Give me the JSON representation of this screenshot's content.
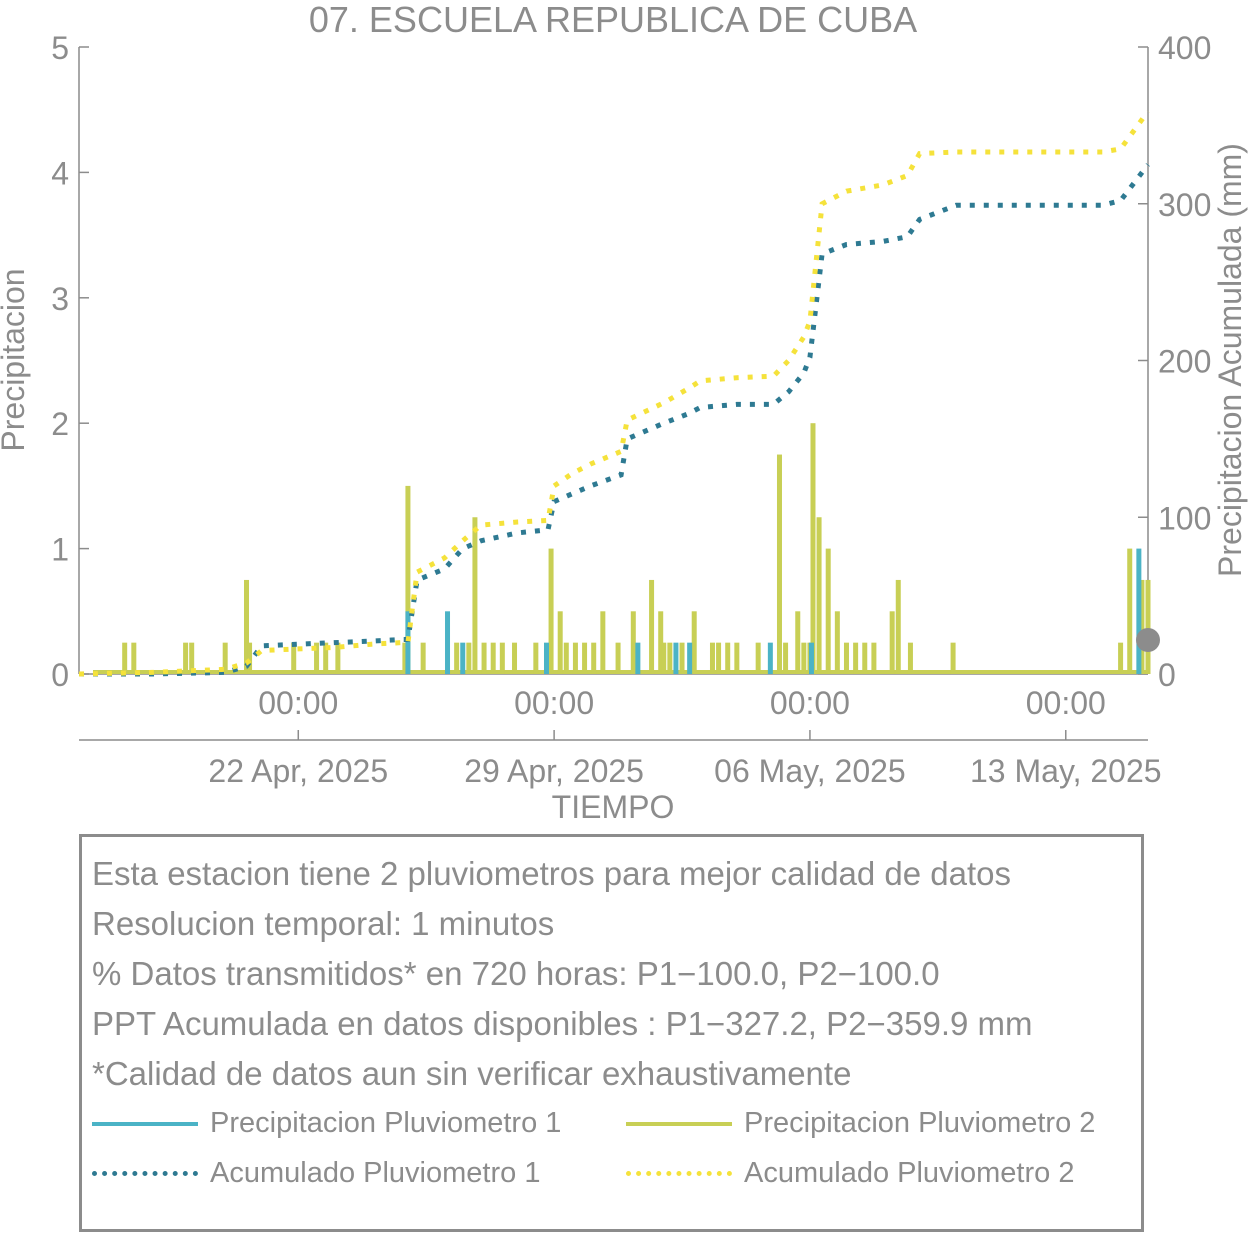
{
  "title": "07. ESCUELA REPUBLICA DE CUBA",
  "axes": {
    "y_left_label": "Precipitacion",
    "y_right_label": "Precipitacion Acumulada (mm)",
    "x_label": "TIEMPO",
    "y_left_ticks": [
      "0",
      "1",
      "2",
      "3",
      "4",
      "5"
    ],
    "y_right_ticks": [
      "0",
      "100",
      "200",
      "300",
      "400"
    ],
    "x_time_ticks": [
      "00:00",
      "00:00",
      "00:00",
      "00:00"
    ],
    "x_date_ticks": [
      "22 Apr, 2025",
      "29 Apr, 2025",
      "06 May, 2025",
      "13 May, 2025"
    ]
  },
  "info": {
    "lines": [
      "Esta estacion tiene 2 pluviometros para mejor calidad de datos",
      "Resolucion temporal: 1 minutos",
      "% Datos transmitidos* en 720 horas: P1−100.0, P2−100.0",
      "PPT Acumulada en datos disponibles : P1−327.2, P2−359.9 mm",
      "*Calidad de datos aun sin verificar exhaustivamente"
    ]
  },
  "legend": [
    {
      "label": "Precipitacion Pluviometro 1",
      "color": "#4bb3c6",
      "style": "solid"
    },
    {
      "label": "Precipitacion Pluviometro 2",
      "color": "#c8cf55",
      "style": "solid"
    },
    {
      "label": "Acumulado Pluviometro 1",
      "color": "#2e7a92",
      "style": "dotted"
    },
    {
      "label": "Acumulado Pluviometro 2",
      "color": "#f5e23b",
      "style": "dotted"
    }
  ],
  "chart_data": {
    "type": "bar",
    "title": "07. ESCUELA REPUBLICA DE CUBA",
    "xlabel": "TIEMPO",
    "ylabel": "Precipitacion",
    "y2label": "Precipitacion Acumulada (mm)",
    "ylim": [
      0,
      5
    ],
    "y2lim": [
      0,
      400
    ],
    "xlim": [
      "2025-04-16T00:00",
      "2025-05-15T06:00"
    ],
    "grid": false,
    "series": [
      {
        "name": "Precipitacion Pluviometro 1",
        "type": "bar",
        "axis": "left",
        "color": "#4bb3c6",
        "x": [
          "2025-04-25T00:00",
          "2025-04-26T02:00",
          "2025-04-26T12:00",
          "2025-04-28T19:00",
          "2025-05-01T07:00",
          "2025-05-02T08:00",
          "2025-05-02T17:00",
          "2025-05-04T22:00",
          "2025-05-06T01:00",
          "2025-05-15T00:00"
        ],
        "values": [
          0.5,
          0.5,
          0.25,
          0.25,
          0.25,
          0.25,
          0.25,
          0.25,
          0.25,
          1.0
        ]
      },
      {
        "name": "Precipitacion Pluviometro 2",
        "type": "bar",
        "axis": "left",
        "color": "#c8cf55",
        "x": [
          "2025-04-17T06:00",
          "2025-04-17T12:00",
          "2025-04-18T22:00",
          "2025-04-19T02:00",
          "2025-04-20T00:00",
          "2025-04-20T14:00",
          "2025-04-20T16:00",
          "2025-04-21T21:00",
          "2025-04-22T12:00",
          "2025-04-22T18:00",
          "2025-04-23T02:00",
          "2025-04-24T22:00",
          "2025-04-25T00:00",
          "2025-04-25T10:00",
          "2025-04-26T08:00",
          "2025-04-26T16:00",
          "2025-04-26T20:00",
          "2025-04-27T02:00",
          "2025-04-27T08:00",
          "2025-04-27T14:00",
          "2025-04-27T22:00",
          "2025-04-28T12:00",
          "2025-04-28T22:00",
          "2025-04-29T04:00",
          "2025-04-29T08:00",
          "2025-04-29T14:00",
          "2025-04-29T20:00",
          "2025-04-30T02:00",
          "2025-04-30T08:00",
          "2025-04-30T18:00",
          "2025-05-01T04:00",
          "2025-05-01T16:00",
          "2025-05-01T22:00",
          "2025-05-02T00:00",
          "2025-05-02T04:00",
          "2025-05-02T12:00",
          "2025-05-02T20:00",
          "2025-05-03T08:00",
          "2025-05-03T12:00",
          "2025-05-03T18:00",
          "2025-05-04T00:00",
          "2025-05-04T14:00",
          "2025-05-05T04:00",
          "2025-05-05T08:00",
          "2025-05-05T16:00",
          "2025-05-05T20:00",
          "2025-05-06T00:00",
          "2025-05-06T02:00",
          "2025-05-06T06:00",
          "2025-05-06T12:00",
          "2025-05-06T18:00",
          "2025-05-07T00:00",
          "2025-05-07T06:00",
          "2025-05-07T12:00",
          "2025-05-07T18:00",
          "2025-05-08T06:00",
          "2025-05-08T10:00",
          "2025-05-08T18:00",
          "2025-05-09T22:00",
          "2025-05-14T12:00",
          "2025-05-14T18:00",
          "2025-05-15T02:00",
          "2025-05-15T06:00"
        ],
        "values": [
          0.25,
          0.25,
          0.25,
          0.25,
          0.25,
          0.75,
          0.25,
          0.25,
          0.25,
          0.25,
          0.25,
          0.25,
          1.5,
          0.25,
          0.25,
          0.25,
          1.25,
          0.25,
          0.25,
          0.25,
          0.25,
          0.25,
          1.0,
          0.5,
          0.25,
          0.25,
          0.25,
          0.25,
          0.5,
          0.25,
          0.5,
          0.75,
          0.5,
          0.25,
          0.25,
          0.25,
          0.5,
          0.25,
          0.25,
          0.25,
          0.25,
          0.25,
          1.75,
          0.25,
          0.5,
          0.25,
          0.25,
          2.0,
          1.25,
          1.0,
          0.5,
          0.25,
          0.25,
          0.25,
          0.25,
          0.5,
          0.75,
          0.25,
          0.25,
          0.25,
          1.0,
          0.75,
          0.75
        ]
      },
      {
        "name": "Acumulado Pluviometro 1",
        "type": "line",
        "axis": "right",
        "color": "#2e7a92",
        "style": "dotted",
        "x": [
          "2025-04-16T00:00",
          "2025-04-18T00:00",
          "2025-04-20T00:00",
          "2025-04-20T14:00",
          "2025-04-21T00:00",
          "2025-04-22T00:00",
          "2025-04-23T00:00",
          "2025-04-24T00:00",
          "2025-04-24T20:00",
          "2025-04-25T00:00",
          "2025-04-25T06:00",
          "2025-04-26T00:00",
          "2025-04-26T12:00",
          "2025-04-27T00:00",
          "2025-04-28T00:00",
          "2025-04-28T20:00",
          "2025-04-29T00:00",
          "2025-04-29T12:00",
          "2025-04-30T00:00",
          "2025-04-30T20:00",
          "2025-05-01T00:00",
          "2025-05-02T00:00",
          "2025-05-02T16:00",
          "2025-05-03T00:00",
          "2025-05-04T00:00",
          "2025-05-05T00:00",
          "2025-05-05T10:00",
          "2025-05-05T20:00",
          "2025-05-06T00:00",
          "2025-05-06T08:00",
          "2025-05-07T00:00",
          "2025-05-08T00:00",
          "2025-05-08T16:00",
          "2025-05-09T00:00",
          "2025-05-10T00:00",
          "2025-05-12T00:00",
          "2025-05-13T00:00",
          "2025-05-14T00:00",
          "2025-05-14T12:00",
          "2025-05-15T06:00"
        ],
        "values": [
          0,
          0,
          1,
          5,
          18,
          19,
          20,
          21,
          22,
          22,
          60,
          67,
          80,
          85,
          90,
          92,
          110,
          115,
          120,
          127,
          150,
          160,
          166,
          170,
          172,
          172,
          180,
          192,
          202,
          268,
          274,
          276,
          279,
          290,
          299,
          299,
          299,
          299,
          302,
          325
        ]
      },
      {
        "name": "Acumulado Pluviometro 2",
        "type": "line",
        "axis": "right",
        "color": "#f5e23b",
        "style": "dotted",
        "x": [
          "2025-04-16T00:00",
          "2025-04-18T00:00",
          "2025-04-20T00:00",
          "2025-04-20T14:00",
          "2025-04-21T00:00",
          "2025-04-22T00:00",
          "2025-04-23T00:00",
          "2025-04-24T00:00",
          "2025-04-24T20:00",
          "2025-04-25T00:00",
          "2025-04-25T06:00",
          "2025-04-26T00:00",
          "2025-04-26T12:00",
          "2025-04-27T00:00",
          "2025-04-28T00:00",
          "2025-04-28T20:00",
          "2025-04-29T00:00",
          "2025-04-29T12:00",
          "2025-04-30T00:00",
          "2025-04-30T20:00",
          "2025-05-01T00:00",
          "2025-05-02T00:00",
          "2025-05-02T16:00",
          "2025-05-03T00:00",
          "2025-05-04T00:00",
          "2025-05-05T00:00",
          "2025-05-05T10:00",
          "2025-05-05T20:00",
          "2025-05-06T00:00",
          "2025-05-06T08:00",
          "2025-05-07T00:00",
          "2025-05-08T00:00",
          "2025-05-08T16:00",
          "2025-05-09T00:00",
          "2025-05-10T00:00",
          "2025-05-12T00:00",
          "2025-05-13T00:00",
          "2025-05-14T00:00",
          "2025-05-14T12:00",
          "2025-05-15T06:00"
        ],
        "values": [
          0,
          1,
          3,
          7,
          15,
          16,
          17,
          19,
          20,
          20,
          65,
          74,
          85,
          95,
          97,
          98,
          120,
          128,
          134,
          142,
          162,
          173,
          182,
          187,
          189,
          190,
          200,
          215,
          225,
          300,
          308,
          312,
          318,
          332,
          333,
          333,
          333,
          333,
          335,
          359
        ]
      }
    ]
  }
}
